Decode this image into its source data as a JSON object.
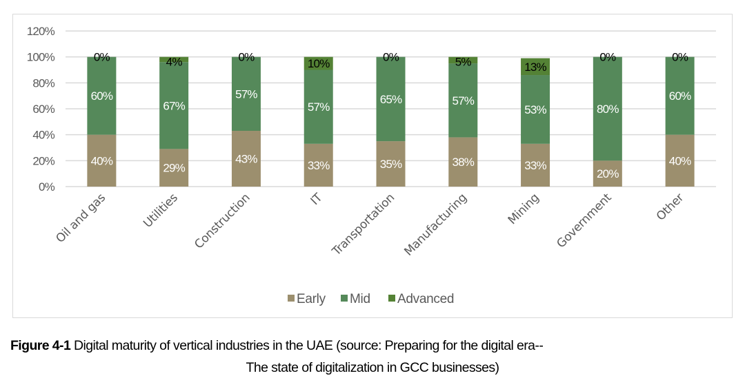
{
  "chart_data": {
    "type": "bar",
    "stacked": true,
    "title": "",
    "xlabel": "",
    "ylabel": "",
    "ylim": [
      0,
      120
    ],
    "yticks": [
      "0%",
      "20%",
      "40%",
      "60%",
      "80%",
      "100%",
      "120%"
    ],
    "ytick_values": [
      0,
      20,
      40,
      60,
      80,
      100,
      120
    ],
    "grid": true,
    "legend_position": "bottom",
    "categories": [
      "Oil and gas",
      "Utilities",
      "Construction",
      "IT",
      "Transportation",
      "Manufacturing",
      "Mining",
      "Government",
      "Other"
    ],
    "series": [
      {
        "name": "Early",
        "color": "#9c8f6e",
        "label_color": "#ffffff",
        "values": [
          40,
          29,
          43,
          33,
          35,
          38,
          33,
          20,
          40
        ],
        "labels": [
          "40%",
          "29%",
          "43%",
          "33%",
          "35%",
          "38%",
          "33%",
          "20%",
          "40%"
        ]
      },
      {
        "name": "Mid",
        "color": "#55895a",
        "label_color": "#ffffff",
        "values": [
          60,
          67,
          57,
          57,
          65,
          57,
          53,
          80,
          60
        ],
        "labels": [
          "60%",
          "67%",
          "57%",
          "57%",
          "65%",
          "57%",
          "53%",
          "80%",
          "60%"
        ]
      },
      {
        "name": "Advanced",
        "color": "#548235",
        "label_color": "#000000",
        "values": [
          0,
          4,
          0,
          10,
          0,
          5,
          13,
          0,
          0
        ],
        "labels": [
          "0%",
          "4%",
          "0%",
          "10%",
          "0%",
          "5%",
          "13%",
          "0%",
          "0%"
        ]
      }
    ]
  },
  "caption": {
    "figure_label": "Figure 4-1",
    "line1_text": " Digital maturity of vertical industries in the UAE (source: Preparing for the digital era--",
    "line2_text": "The state of digitalization in GCC businesses)"
  }
}
